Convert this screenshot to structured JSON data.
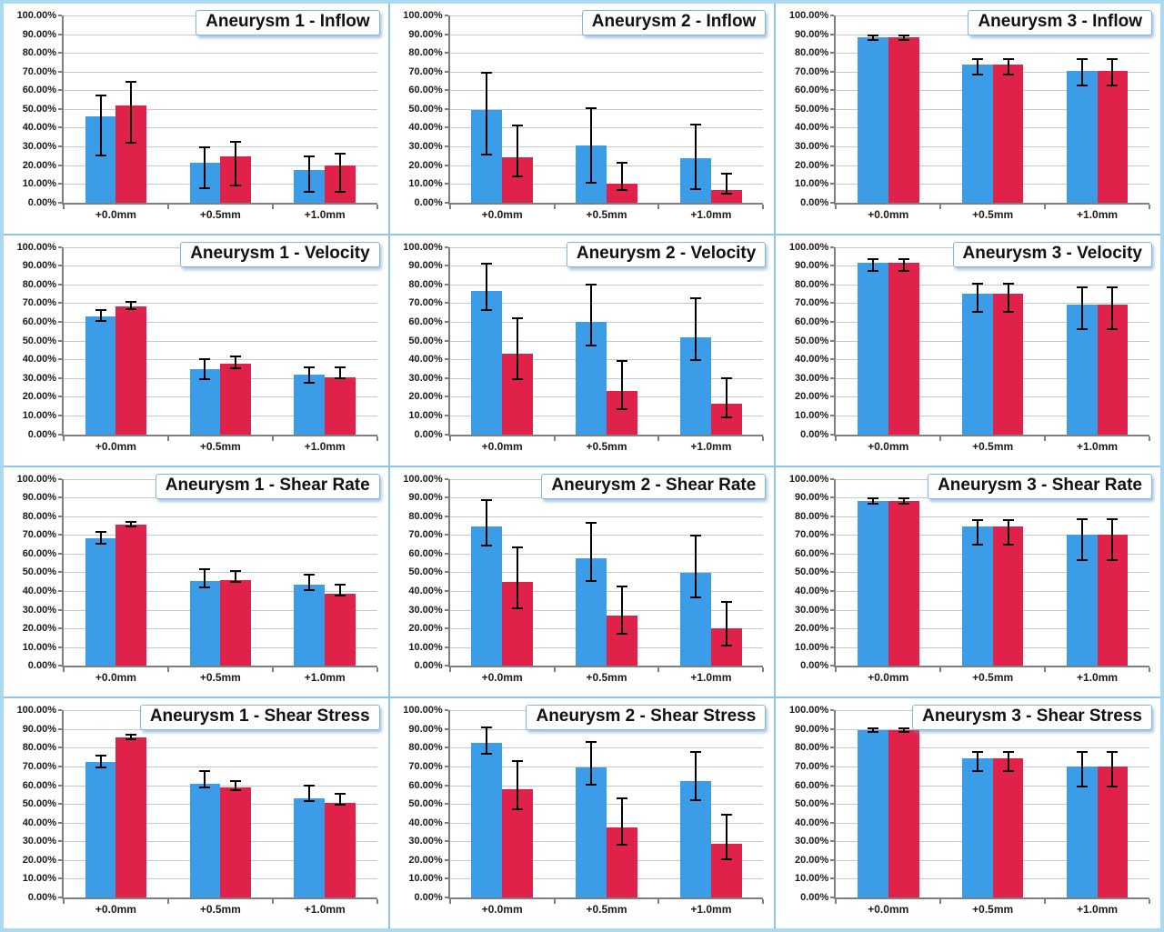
{
  "axis": {
    "y_tick_labels": [
      "0.00%",
      "10.00%",
      "20.00%",
      "30.00%",
      "40.00%",
      "50.00%",
      "60.00%",
      "70.00%",
      "80.00%",
      "90.00%",
      "100.00%"
    ],
    "categories": [
      "+0.0mm",
      "+0.5mm",
      "+1.0mm"
    ]
  },
  "colors": {
    "bar_blue": "#3b9ce8",
    "bar_red": "#e0224a",
    "gridline": "#c3c9cd",
    "axis_line": "#7f7f7f",
    "panel_divider": "#8cc6ec",
    "outer_border": "#abd9f2",
    "title_border": "#7eb6e4"
  },
  "chart_data": [
    {
      "type": "bar",
      "title": "Aneurysm 1 - Inflow",
      "categories": [
        "+0.0mm",
        "+0.5mm",
        "+1.0mm"
      ],
      "ylabel": "",
      "xlabel": "",
      "ylim": [
        0,
        100
      ],
      "grid": true,
      "legend": "none",
      "series": [
        {
          "name": "blue",
          "values": [
            46,
            21.5,
            17.5
          ],
          "err_low": [
            24.5,
            7,
            5
          ],
          "err_high": [
            57.5,
            30,
            25
          ]
        },
        {
          "name": "red",
          "values": [
            52,
            24.5,
            20
          ],
          "err_low": [
            31.5,
            8.5,
            5
          ],
          "err_high": [
            65,
            33,
            26.5
          ]
        }
      ]
    },
    {
      "type": "bar",
      "title": "Aneurysm 2 - Inflow",
      "categories": [
        "+0.0mm",
        "+0.5mm",
        "+1.0mm"
      ],
      "ylabel": "",
      "xlabel": "",
      "ylim": [
        0,
        100
      ],
      "grid": true,
      "legend": "none",
      "series": [
        {
          "name": "blue",
          "values": [
            49.5,
            30.5,
            23.5
          ],
          "err_low": [
            25,
            10,
            6.5
          ],
          "err_high": [
            70,
            51,
            42
          ]
        },
        {
          "name": "red",
          "values": [
            24,
            10,
            6.5
          ],
          "err_low": [
            13.5,
            6,
            4.5
          ],
          "err_high": [
            41.5,
            22,
            16
          ]
        }
      ]
    },
    {
      "type": "bar",
      "title": "Aneurysm 3 - Inflow",
      "categories": [
        "+0.0mm",
        "+0.5mm",
        "+1.0mm"
      ],
      "ylabel": "",
      "xlabel": "",
      "ylim": [
        0,
        100
      ],
      "grid": true,
      "legend": "none",
      "series": [
        {
          "name": "blue",
          "values": [
            88.5,
            74,
            70.5
          ],
          "err_low": [
            86.5,
            68,
            62
          ],
          "err_high": [
            90,
            77,
            77
          ]
        },
        {
          "name": "red",
          "values": [
            88.5,
            74,
            70.5
          ],
          "err_low": [
            86.5,
            68,
            62
          ],
          "err_high": [
            90,
            77,
            77
          ]
        }
      ]
    },
    {
      "type": "bar",
      "title": "Aneurysm 1 - Velocity",
      "categories": [
        "+0.0mm",
        "+0.5mm",
        "+1.0mm"
      ],
      "ylabel": "",
      "xlabel": "",
      "ylim": [
        0,
        100
      ],
      "grid": true,
      "legend": "none",
      "series": [
        {
          "name": "blue",
          "values": [
            63,
            35,
            32
          ],
          "err_low": [
            60,
            29,
            27
          ],
          "err_high": [
            67,
            40.5,
            36
          ]
        },
        {
          "name": "red",
          "values": [
            68.5,
            37.5,
            30.5
          ],
          "err_low": [
            66.5,
            35,
            29.5
          ],
          "err_high": [
            71,
            42,
            36
          ]
        }
      ]
    },
    {
      "type": "bar",
      "title": "Aneurysm 2 - Velocity",
      "categories": [
        "+0.0mm",
        "+0.5mm",
        "+1.0mm"
      ],
      "ylabel": "",
      "xlabel": "",
      "ylim": [
        0,
        100
      ],
      "grid": true,
      "legend": "none",
      "series": [
        {
          "name": "blue",
          "values": [
            76.5,
            60,
            52
          ],
          "err_low": [
            66,
            47,
            39
          ],
          "err_high": [
            91.5,
            80.5,
            73
          ]
        },
        {
          "name": "red",
          "values": [
            43,
            23,
            16.5
          ],
          "err_low": [
            29,
            13,
            8.5
          ],
          "err_high": [
            62.5,
            39.5,
            30.5
          ]
        }
      ]
    },
    {
      "type": "bar",
      "title": "Aneurysm 3 - Velocity",
      "categories": [
        "+0.0mm",
        "+0.5mm",
        "+1.0mm"
      ],
      "ylabel": "",
      "xlabel": "",
      "ylim": [
        0,
        100
      ],
      "grid": true,
      "legend": "none",
      "series": [
        {
          "name": "blue",
          "values": [
            91.5,
            75,
            69.5
          ],
          "err_low": [
            87,
            65,
            55.5
          ],
          "err_high": [
            94,
            81,
            79
          ]
        },
        {
          "name": "red",
          "values": [
            91.5,
            75,
            69.5
          ],
          "err_low": [
            87,
            65,
            55.5
          ],
          "err_high": [
            94,
            81,
            79
          ]
        }
      ]
    },
    {
      "type": "bar",
      "title": "Aneurysm 1 - Shear Rate",
      "categories": [
        "+0.0mm",
        "+0.5mm",
        "+1.0mm"
      ],
      "ylabel": "",
      "xlabel": "",
      "ylim": [
        0,
        100
      ],
      "grid": true,
      "legend": "none",
      "series": [
        {
          "name": "blue",
          "values": [
            68,
            45.5,
            43.5
          ],
          "err_low": [
            65,
            41.5,
            40
          ],
          "err_high": [
            72,
            52,
            49
          ]
        },
        {
          "name": "red",
          "values": [
            75.5,
            46,
            38.5
          ],
          "err_low": [
            74,
            44.5,
            37
          ],
          "err_high": [
            77.5,
            51,
            44
          ]
        }
      ]
    },
    {
      "type": "bar",
      "title": "Aneurysm 2 - Shear Rate",
      "categories": [
        "+0.0mm",
        "+0.5mm",
        "+1.0mm"
      ],
      "ylabel": "",
      "xlabel": "",
      "ylim": [
        0,
        100
      ],
      "grid": true,
      "legend": "none",
      "series": [
        {
          "name": "blue",
          "values": [
            74.5,
            57.5,
            49.5
          ],
          "err_low": [
            64,
            45,
            36
          ],
          "err_high": [
            89,
            77,
            70
          ]
        },
        {
          "name": "red",
          "values": [
            45,
            27,
            20
          ],
          "err_low": [
            30.5,
            16.5,
            10.5
          ],
          "err_high": [
            64,
            43,
            34.5
          ]
        }
      ]
    },
    {
      "type": "bar",
      "title": "Aneurysm 3 - Shear Rate",
      "categories": [
        "+0.0mm",
        "+0.5mm",
        "+1.0mm"
      ],
      "ylabel": "",
      "xlabel": "",
      "ylim": [
        0,
        100
      ],
      "grid": true,
      "legend": "none",
      "series": [
        {
          "name": "blue",
          "values": [
            88,
            74.5,
            70
          ],
          "err_low": [
            86,
            64.5,
            56
          ],
          "err_high": [
            90,
            78.5,
            79
          ]
        },
        {
          "name": "red",
          "values": [
            88,
            74.5,
            70
          ],
          "err_low": [
            86,
            64.5,
            56
          ],
          "err_high": [
            90,
            78.5,
            79
          ]
        }
      ]
    },
    {
      "type": "bar",
      "title": "Aneurysm 1 - Shear Stress",
      "categories": [
        "+0.0mm",
        "+0.5mm",
        "+1.0mm"
      ],
      "ylabel": "",
      "xlabel": "",
      "ylim": [
        0,
        100
      ],
      "grid": true,
      "legend": "none",
      "series": [
        {
          "name": "blue",
          "values": [
            72.5,
            61,
            53
          ],
          "err_low": [
            69,
            58.5,
            51
          ],
          "err_high": [
            76.5,
            68,
            60.5
          ]
        },
        {
          "name": "red",
          "values": [
            85.5,
            59,
            50.5
          ],
          "err_low": [
            84,
            57,
            49
          ],
          "err_high": [
            87.5,
            62.5,
            56
          ]
        }
      ]
    },
    {
      "type": "bar",
      "title": "Aneurysm 2 - Shear Stress",
      "categories": [
        "+0.0mm",
        "+0.5mm",
        "+1.0mm"
      ],
      "ylabel": "",
      "xlabel": "",
      "ylim": [
        0,
        100
      ],
      "grid": true,
      "legend": "none",
      "series": [
        {
          "name": "blue",
          "values": [
            82.5,
            69.5,
            62
          ],
          "err_low": [
            76.5,
            60,
            51.5
          ],
          "err_high": [
            91.5,
            83.5,
            78.5
          ]
        },
        {
          "name": "red",
          "values": [
            58,
            37.5,
            28.5
          ],
          "err_low": [
            46.5,
            27.5,
            20
          ],
          "err_high": [
            73.5,
            53.5,
            44.5
          ]
        }
      ]
    },
    {
      "type": "bar",
      "title": "Aneurysm 3 - Shear Stress",
      "categories": [
        "+0.0mm",
        "+0.5mm",
        "+1.0mm"
      ],
      "ylabel": "",
      "xlabel": "",
      "ylim": [
        0,
        100
      ],
      "grid": true,
      "legend": "none",
      "series": [
        {
          "name": "blue",
          "values": [
            89.5,
            74.5,
            70
          ],
          "err_low": [
            88,
            67,
            59
          ],
          "err_high": [
            91,
            78.5,
            78.5
          ]
        },
        {
          "name": "red",
          "values": [
            89.5,
            74.5,
            70
          ],
          "err_low": [
            88,
            67,
            59
          ],
          "err_high": [
            91,
            78.5,
            78.5
          ]
        }
      ]
    }
  ]
}
